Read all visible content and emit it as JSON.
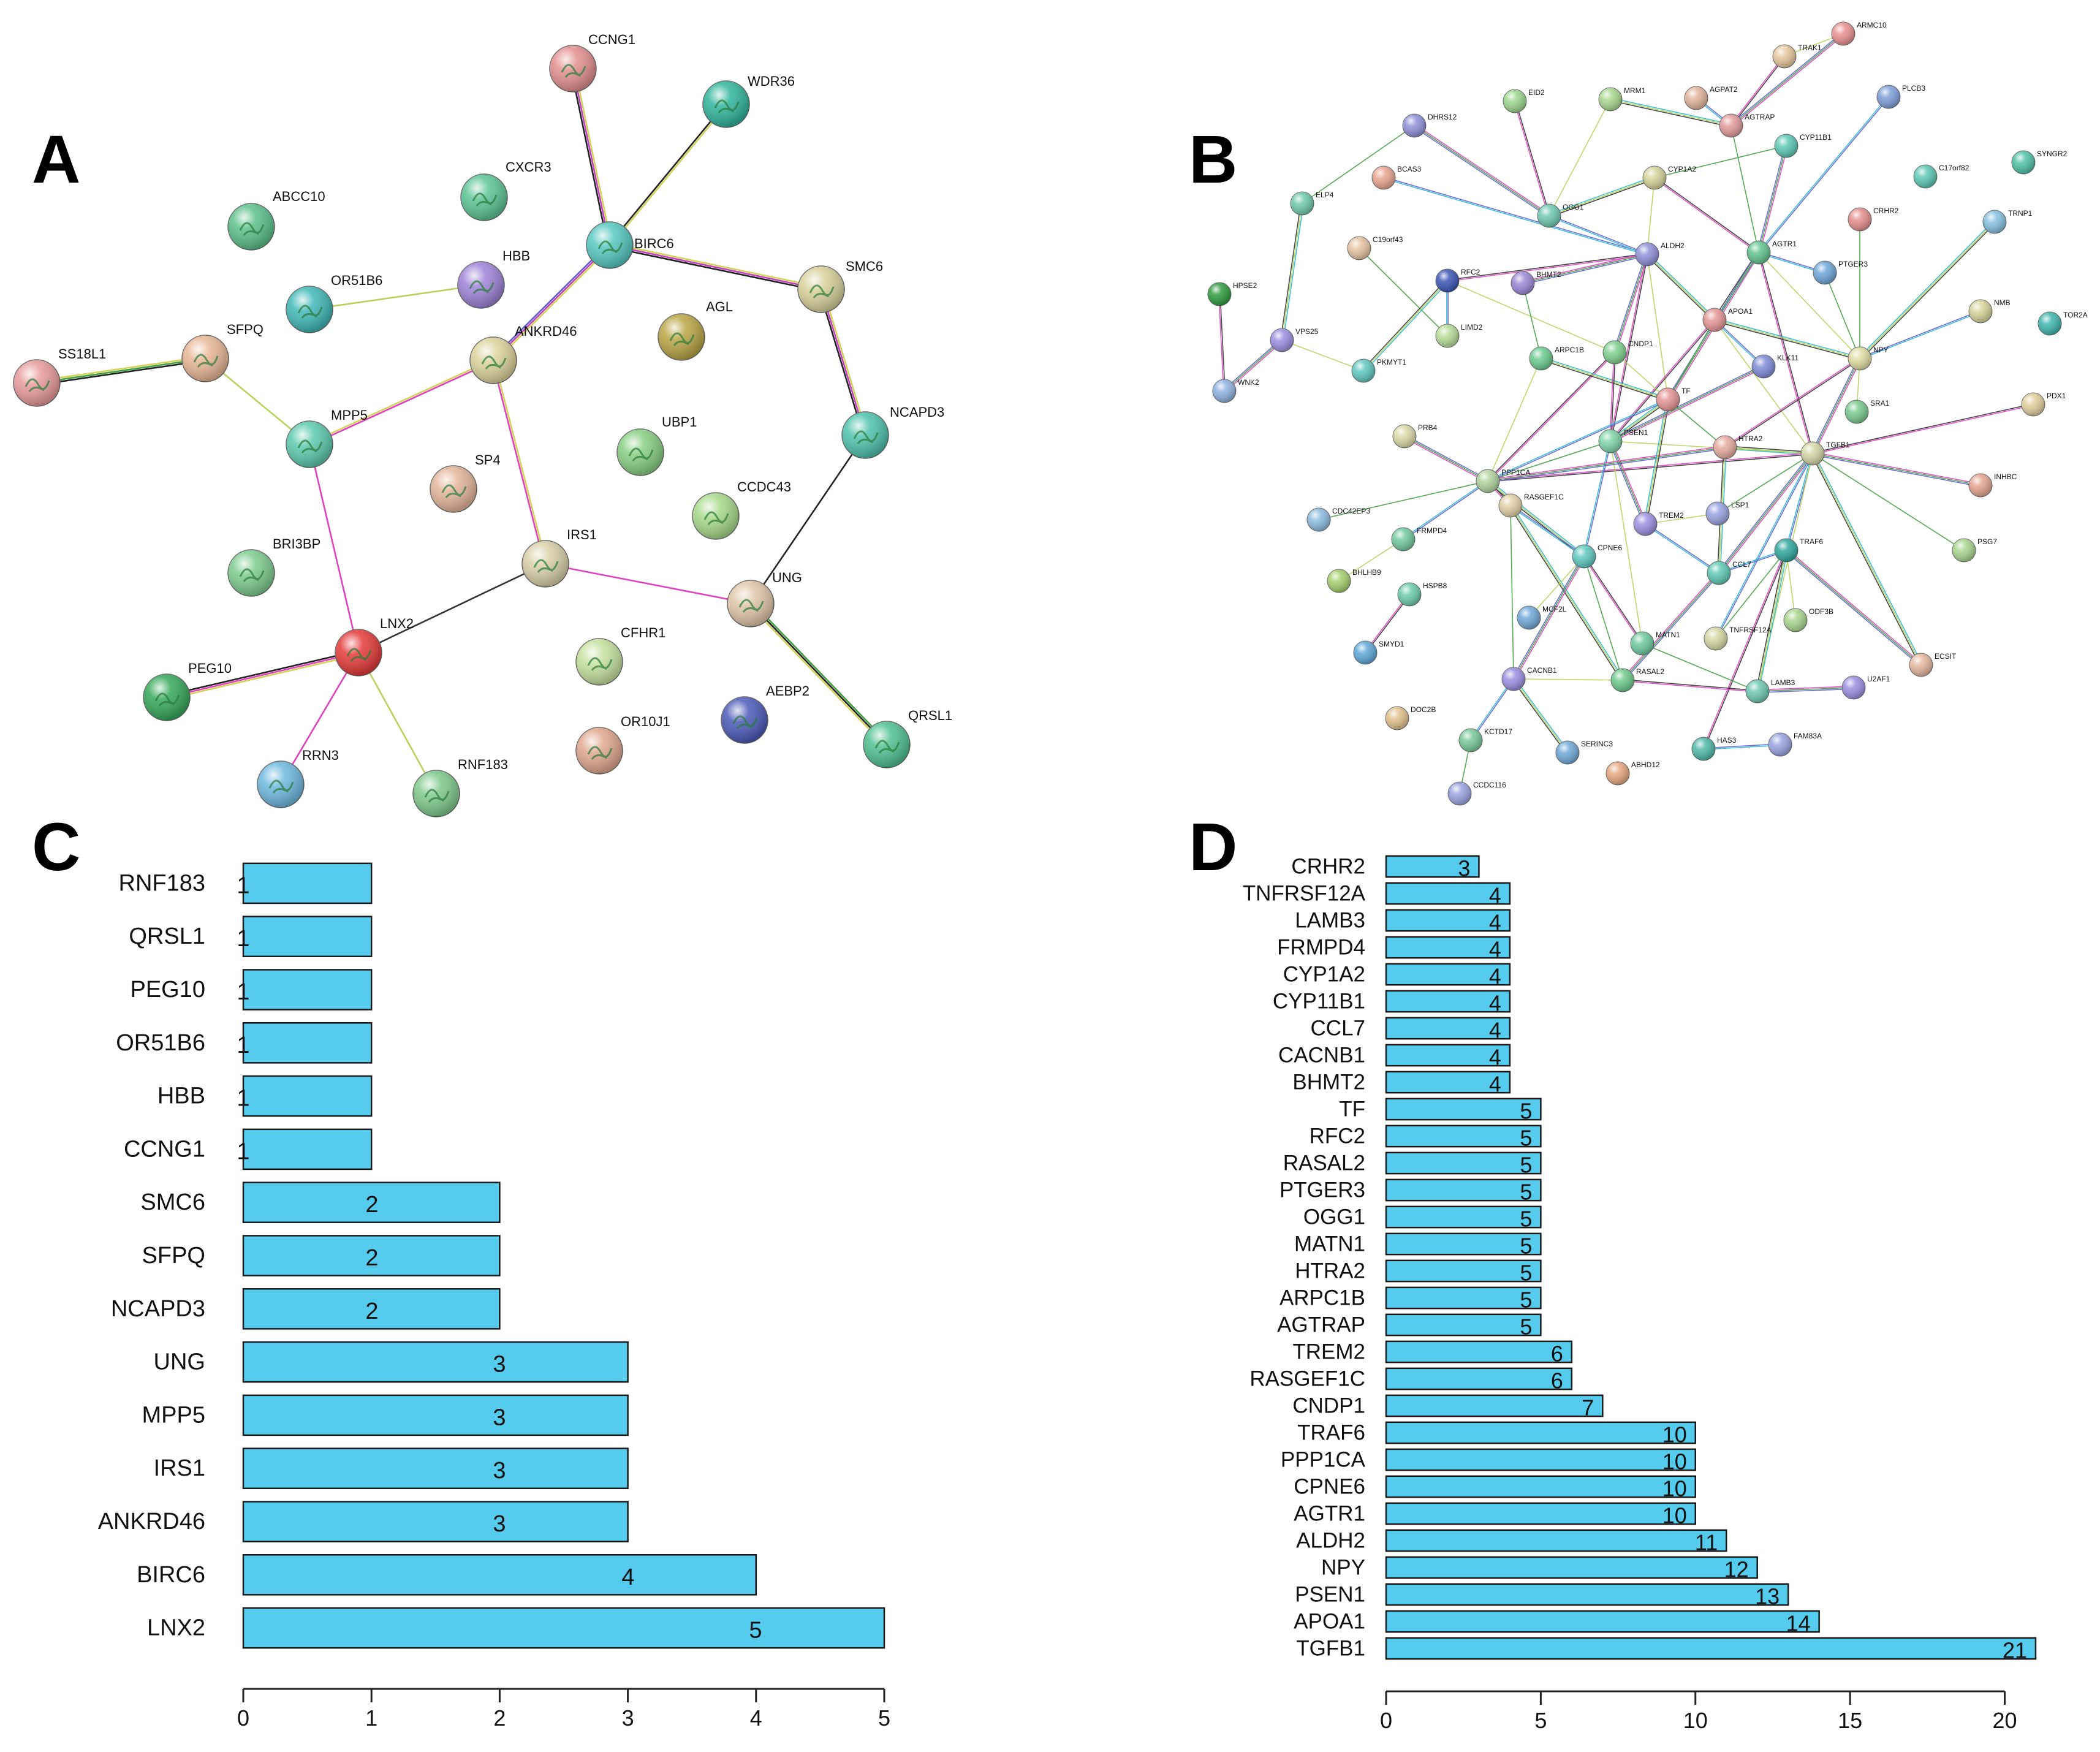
{
  "panels": {
    "a": {
      "letter": "A"
    },
    "b": {
      "letter": "B"
    },
    "c": {
      "letter": "C"
    },
    "d": {
      "letter": "D"
    }
  },
  "network_a": {
    "nodes": [
      {
        "id": "CCNG1",
        "color": "#e38f8f"
      },
      {
        "id": "WDR36",
        "color": "#2fb59c"
      },
      {
        "id": "ABCC10",
        "color": "#5cc08a"
      },
      {
        "id": "CXCR3",
        "color": "#5cc595"
      },
      {
        "id": "BIRC6",
        "color": "#56c8c0"
      },
      {
        "id": "HBB",
        "color": "#9f83d8"
      },
      {
        "id": "OR51B6",
        "color": "#40b8b8"
      },
      {
        "id": "SMC6",
        "color": "#d8d09a"
      },
      {
        "id": "AGL",
        "color": "#b9a544"
      },
      {
        "id": "ANKRD46",
        "color": "#dcd39b"
      },
      {
        "id": "SS18L1",
        "color": "#e89b9b"
      },
      {
        "id": "SFPQ",
        "color": "#e8b795"
      },
      {
        "id": "MPP5",
        "color": "#5dcaae"
      },
      {
        "id": "UBP1",
        "color": "#88cf82"
      },
      {
        "id": "NCAPD3",
        "color": "#4fc2ad"
      },
      {
        "id": "SP4",
        "color": "#e4b59a"
      },
      {
        "id": "CCDC43",
        "color": "#a7d98a"
      },
      {
        "id": "IRS1",
        "color": "#d9d0a8"
      },
      {
        "id": "BRI3BP",
        "color": "#7dcc8e"
      },
      {
        "id": "UNG",
        "color": "#e0c5a8"
      },
      {
        "id": "LNX2",
        "color": "#e53a3a"
      },
      {
        "id": "CFHR1",
        "color": "#c6e19e"
      },
      {
        "id": "PEG10",
        "color": "#35a85a"
      },
      {
        "id": "OR10J1",
        "color": "#e0a78e"
      },
      {
        "id": "AEBP2",
        "color": "#4b5ab8"
      },
      {
        "id": "QRSL1",
        "color": "#4fc192"
      },
      {
        "id": "RRN3",
        "color": "#6fb9e0"
      },
      {
        "id": "RNF183",
        "color": "#7fc98b"
      }
    ],
    "edges": [
      {
        "source": "CCNG1",
        "target": "BIRC6"
      },
      {
        "source": "WDR36",
        "target": "BIRC6"
      },
      {
        "source": "BIRC6",
        "target": "SMC6"
      },
      {
        "source": "BIRC6",
        "target": "ANKRD46"
      },
      {
        "source": "SMC6",
        "target": "NCAPD3"
      },
      {
        "source": "NCAPD3",
        "target": "UNG"
      },
      {
        "source": "OR51B6",
        "target": "HBB"
      },
      {
        "source": "SS18L1",
        "target": "SFPQ"
      },
      {
        "source": "SFPQ",
        "target": "MPP5"
      },
      {
        "source": "MPP5",
        "target": "ANKRD46"
      },
      {
        "source": "MPP5",
        "target": "LNX2"
      },
      {
        "source": "ANKRD46",
        "target": "IRS1"
      },
      {
        "source": "IRS1",
        "target": "LNX2"
      },
      {
        "source": "IRS1",
        "target": "UNG"
      },
      {
        "source": "UNG",
        "target": "QRSL1"
      },
      {
        "source": "LNX2",
        "target": "PEG10"
      },
      {
        "source": "LNX2",
        "target": "RRN3"
      },
      {
        "source": "LNX2",
        "target": "RNF183"
      }
    ]
  },
  "network_b": {
    "nodes": [
      {
        "id": "ARMC10",
        "color": "#e89090"
      },
      {
        "id": "TRAK1",
        "color": "#e5c69c"
      },
      {
        "id": "PLCB3",
        "color": "#7e9ed8"
      },
      {
        "id": "EID2",
        "color": "#9bd68c"
      },
      {
        "id": "MRM1",
        "color": "#a9d78f"
      },
      {
        "id": "AGPAT2",
        "color": "#e2b49b"
      },
      {
        "id": "AGTRAP",
        "color": "#e29a9a"
      },
      {
        "id": "CYP11B1",
        "color": "#5cc8b4"
      },
      {
        "id": "DHRS12",
        "color": "#8f90d8"
      },
      {
        "id": "C17orf82",
        "color": "#5cc8b4"
      },
      {
        "id": "SYNGR2",
        "color": "#4fc2a5"
      },
      {
        "id": "BCAS3",
        "color": "#e8a58e"
      },
      {
        "id": "CYP1A2",
        "color": "#d5d39a"
      },
      {
        "id": "OGG1",
        "color": "#6fc9b0"
      },
      {
        "id": "ELP4",
        "color": "#6fcaa9"
      },
      {
        "id": "CRHR2",
        "color": "#e58f8f"
      },
      {
        "id": "TRNP1",
        "color": "#86c0e0"
      },
      {
        "id": "ALDH2",
        "color": "#8f90d8"
      },
      {
        "id": "AGTR1",
        "color": "#62c48e"
      },
      {
        "id": "C19orf43",
        "color": "#e7c3a2"
      },
      {
        "id": "PTGER3",
        "color": "#6ea6d8"
      },
      {
        "id": "RFC2",
        "color": "#3b56b5"
      },
      {
        "id": "BHMT2",
        "color": "#9a88d6"
      },
      {
        "id": "HPSE2",
        "color": "#2e9a3e"
      },
      {
        "id": "NMB",
        "color": "#d5d39a"
      },
      {
        "id": "TOR2A",
        "color": "#3eb5ad"
      },
      {
        "id": "LIMD2",
        "color": "#b7dc98"
      },
      {
        "id": "APOA1",
        "color": "#e59696"
      },
      {
        "id": "VPS25",
        "color": "#9b8ee0"
      },
      {
        "id": "CNDP1",
        "color": "#7fd08e"
      },
      {
        "id": "ARPC1B",
        "color": "#6ccc91"
      },
      {
        "id": "KLK11",
        "color": "#7f8cd8"
      },
      {
        "id": "NPY",
        "color": "#e0dca4"
      },
      {
        "id": "PKMYT1",
        "color": "#5ec8c0"
      },
      {
        "id": "WNK2",
        "color": "#8fb2e0"
      },
      {
        "id": "TF",
        "color": "#e49494"
      },
      {
        "id": "SRA1",
        "color": "#7ac98f"
      },
      {
        "id": "PDX1",
        "color": "#e0cf9c"
      },
      {
        "id": "PRB4",
        "color": "#d9d8a5"
      },
      {
        "id": "PSEN1",
        "color": "#7fd4a8"
      },
      {
        "id": "HTRA2",
        "color": "#e5aa9e"
      },
      {
        "id": "TGFB1",
        "color": "#d3d5a4"
      },
      {
        "id": "PPP1CA",
        "color": "#b2d49f"
      },
      {
        "id": "RASGEF1C",
        "color": "#e1d0a4"
      },
      {
        "id": "INHBC",
        "color": "#e5a48e"
      },
      {
        "id": "CDC42EP3",
        "color": "#8cbce0"
      },
      {
        "id": "TREM2",
        "color": "#9b8ee0"
      },
      {
        "id": "LSP1",
        "color": "#9aa2e0"
      },
      {
        "id": "FRMPD4",
        "color": "#72c99e"
      },
      {
        "id": "CPNE6",
        "color": "#5ec9c0"
      },
      {
        "id": "TRAF6",
        "color": "#2ea79c"
      },
      {
        "id": "PSG7",
        "color": "#a8d58d"
      },
      {
        "id": "BHLHB9",
        "color": "#a5cf6d"
      },
      {
        "id": "HSPB8",
        "color": "#6dcba9"
      },
      {
        "id": "CCL7",
        "color": "#5ec8b4"
      },
      {
        "id": "MCF2L",
        "color": "#6fa8d8"
      },
      {
        "id": "ODF3B",
        "color": "#a8d58d"
      },
      {
        "id": "SMYD1",
        "color": "#5ea8d8"
      },
      {
        "id": "MATN1",
        "color": "#6dc99e"
      },
      {
        "id": "TNFRSF12A",
        "color": "#d6d8a3"
      },
      {
        "id": "CACNB1",
        "color": "#9b8ee0"
      },
      {
        "id": "RASAL2",
        "color": "#6dc98a"
      },
      {
        "id": "LAMB3",
        "color": "#6ec8b0"
      },
      {
        "id": "ECSIT",
        "color": "#e5b69e"
      },
      {
        "id": "U2AF1",
        "color": "#9b8ee0"
      },
      {
        "id": "DOC2B",
        "color": "#e0c08c"
      },
      {
        "id": "KCTD17",
        "color": "#78c99a"
      },
      {
        "id": "HAS3",
        "color": "#4fb8a8"
      },
      {
        "id": "FAM83A",
        "color": "#9aa2e0"
      },
      {
        "id": "SERINC3",
        "color": "#6fa8d8"
      },
      {
        "id": "ABHD12",
        "color": "#e5a67e"
      },
      {
        "id": "CCDC116",
        "color": "#9aa2e0"
      }
    ]
  },
  "chart_data": [
    {
      "type": "bar",
      "orientation": "horizontal",
      "panel": "C",
      "categories": [
        "RNF183",
        "QRSL1",
        "PEG10",
        "OR51B6",
        "HBB",
        "CCNG1",
        "SMC6",
        "SFPQ",
        "NCAPD3",
        "UNG",
        "MPP5",
        "IRS1",
        "ANKRD46",
        "BIRC6",
        "LNX2"
      ],
      "values": [
        1,
        1,
        1,
        1,
        1,
        1,
        2,
        2,
        2,
        3,
        3,
        3,
        3,
        4,
        5
      ],
      "value_labels": [
        "1",
        "1",
        "1",
        "1",
        "1",
        "1",
        "2",
        "2",
        "2",
        "3",
        "3",
        "3",
        "3",
        "4",
        "5"
      ],
      "xlim": [
        0,
        5
      ],
      "xticks": [
        "0",
        "1",
        "2",
        "3",
        "4",
        "5"
      ],
      "bar_color": "#55CCEE",
      "xlabel": "",
      "ylabel": "",
      "title": ""
    },
    {
      "type": "bar",
      "orientation": "horizontal",
      "panel": "D",
      "categories": [
        "CRHR2",
        "TNFRSF12A",
        "LAMB3",
        "FRMPD4",
        "CYP1A2",
        "CYP11B1",
        "CCL7",
        "CACNB1",
        "BHMT2",
        "TF",
        "RFC2",
        "RASAL2",
        "PTGER3",
        "OGG1",
        "MATN1",
        "HTRA2",
        "ARPC1B",
        "AGTRAP",
        "TREM2",
        "RASGEF1C",
        "CNDP1",
        "TRAF6",
        "PPP1CA",
        "CPNE6",
        "AGTR1",
        "ALDH2",
        "NPY",
        "PSEN1",
        "APOA1",
        "TGFB1"
      ],
      "values": [
        3,
        4,
        4,
        4,
        4,
        4,
        4,
        4,
        4,
        5,
        5,
        5,
        5,
        5,
        5,
        5,
        5,
        5,
        6,
        6,
        7,
        10,
        10,
        10,
        10,
        11,
        12,
        13,
        14,
        21
      ],
      "value_labels": [
        "3",
        "4",
        "4",
        "4",
        "4",
        "4",
        "4",
        "4",
        "4",
        "5",
        "5",
        "5",
        "5",
        "5",
        "5",
        "5",
        "5",
        "5",
        "6",
        "6",
        "7",
        "10",
        "10",
        "10",
        "10",
        "11",
        "12",
        "13",
        "14",
        "21"
      ],
      "xlim": [
        0,
        21
      ],
      "xticks": [
        "0",
        "5",
        "10",
        "15",
        "20"
      ],
      "xtick_values": [
        0,
        5,
        10,
        15,
        20
      ],
      "bar_color": "#55CCEE",
      "xlabel": "",
      "ylabel": "",
      "title": ""
    }
  ]
}
